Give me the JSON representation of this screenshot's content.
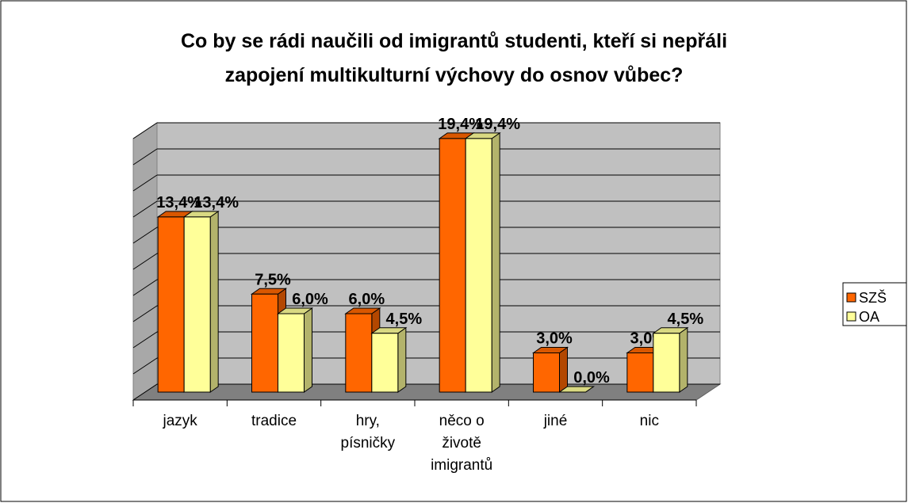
{
  "chart_data": {
    "type": "bar3d",
    "title": [
      "Co by se rádi naučili od imigrantů studenti, kteří si nepřáli",
      "zapojení multikulturní výchovy do osnov vůbec?"
    ],
    "categories": [
      "jazyk",
      "tradice",
      "hry, písničky",
      "něco o životě imigrantů",
      "jiné",
      "nic"
    ],
    "series": [
      {
        "name": "SZŠ",
        "color": "#ff6600",
        "values": [
          13.4,
          7.5,
          6.0,
          19.4,
          3.0,
          3.0
        ],
        "value_labels": [
          "13,4%",
          "7,5%",
          "6,0%",
          "19,4%",
          "3,0%",
          "3,0%"
        ]
      },
      {
        "name": "OA",
        "color": "#ffff99",
        "values": [
          13.4,
          6.0,
          4.5,
          19.4,
          0.0,
          4.5
        ],
        "value_labels": [
          "13,4%",
          "6,0%",
          "4,5%",
          "19,4%",
          "0,0%",
          "4,5%"
        ]
      }
    ],
    "ylim": [
      0,
      20
    ],
    "yticks": [
      0,
      2,
      4,
      6,
      8,
      10,
      12,
      14,
      16,
      18,
      20
    ],
    "grid": true
  }
}
